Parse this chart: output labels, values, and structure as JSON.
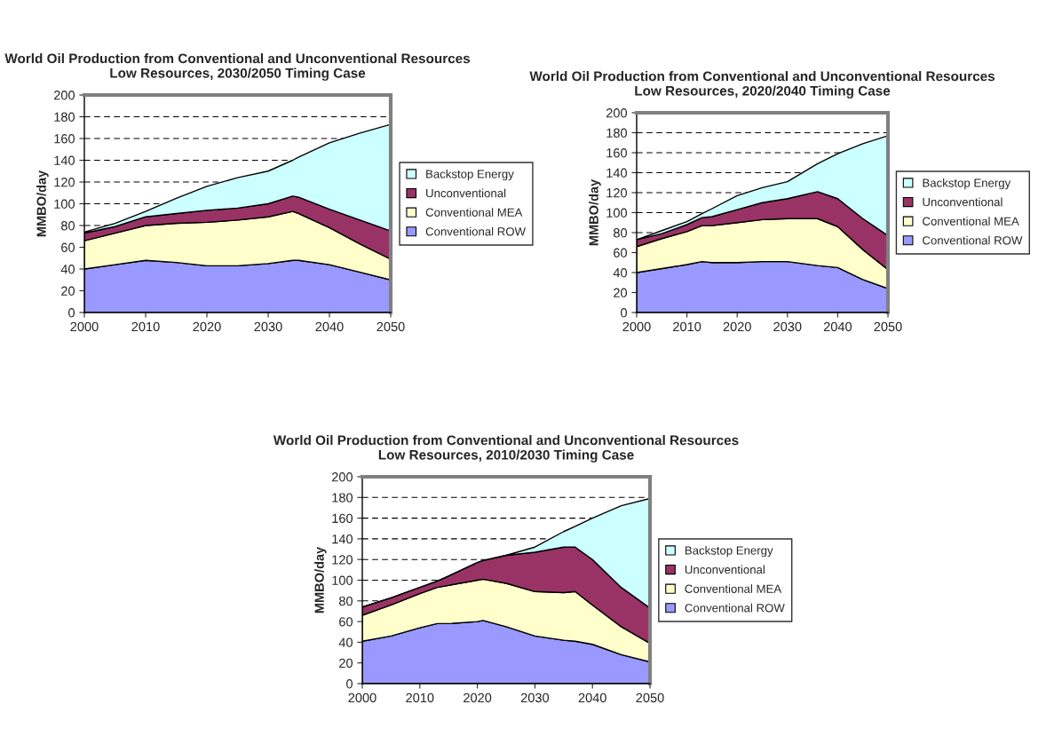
{
  "chart_data": [
    {
      "type": "area",
      "stacked": true,
      "title": "World Oil Production from Conventional and Unconventional Resources\nLow Resources, 2030/2050 Timing Case",
      "ylabel": "MMBO/day",
      "x": [
        2000,
        2005,
        2010,
        2015,
        2020,
        2025,
        2030,
        2034,
        2035,
        2040,
        2045,
        2050
      ],
      "xlim": [
        2000,
        2050
      ],
      "xticks": [
        2000,
        2010,
        2020,
        2030,
        2040,
        2050
      ],
      "ylim": [
        0,
        200
      ],
      "yticks": [
        0,
        20,
        40,
        60,
        80,
        100,
        120,
        140,
        160,
        180,
        200
      ],
      "grid": "y",
      "legend": "right",
      "series": [
        {
          "name": "Conventional ROW",
          "color": "#9999ff",
          "values": [
            40,
            44,
            48,
            46,
            43,
            43,
            45,
            48,
            48,
            44,
            37,
            30
          ]
        },
        {
          "name": "Conventional MEA",
          "color": "#ffffcc",
          "values": [
            26,
            29,
            32,
            36,
            40,
            42,
            43,
            45,
            43,
            34,
            26,
            19
          ]
        },
        {
          "name": "Unconventional",
          "color": "#993366",
          "values": [
            7,
            6,
            8,
            9,
            11,
            11,
            12,
            14,
            15,
            17,
            22,
            26
          ]
        },
        {
          "name": "Backstop Energy",
          "color": "#ccffff",
          "values": [
            1,
            3,
            5,
            14,
            22,
            28,
            30,
            33,
            37,
            61,
            80,
            98
          ]
        }
      ]
    },
    {
      "type": "area",
      "stacked": true,
      "title": "World Oil Production from Conventional and Unconventional Resources\nLow Resources, 2020/2040 Timing Case",
      "ylabel": "MMBO/day",
      "x": [
        2000,
        2005,
        2010,
        2013,
        2015,
        2020,
        2025,
        2030,
        2036,
        2040,
        2045,
        2050
      ],
      "xlim": [
        2000,
        2050
      ],
      "xticks": [
        2000,
        2010,
        2020,
        2030,
        2040,
        2050
      ],
      "ylim": [
        0,
        200
      ],
      "yticks": [
        0,
        20,
        40,
        60,
        80,
        100,
        120,
        140,
        160,
        180,
        200
      ],
      "grid": "y",
      "legend": "right",
      "series": [
        {
          "name": "Conventional ROW",
          "color": "#9999ff",
          "values": [
            40,
            44,
            48,
            51,
            50,
            50,
            51,
            51,
            47,
            45,
            33,
            24
          ]
        },
        {
          "name": "Conventional MEA",
          "color": "#ffffcc",
          "values": [
            26,
            30,
            33,
            36,
            37,
            40,
            42,
            43,
            47,
            41,
            30,
            19
          ]
        },
        {
          "name": "Unconventional",
          "color": "#993366",
          "values": [
            7,
            5,
            7,
            8,
            9,
            13,
            17,
            20,
            27,
            28,
            31,
            34
          ]
        },
        {
          "name": "Backstop Energy",
          "color": "#ccffff",
          "values": [
            0,
            3,
            3,
            4,
            8,
            14,
            15,
            17,
            28,
            45,
            75,
            100
          ]
        }
      ]
    },
    {
      "type": "area",
      "stacked": true,
      "title": "World Oil Production from Conventional and Unconventional Resources\nLow Resources, 2010/2030 Timing Case",
      "ylabel": "MMBO/day",
      "x": [
        2000,
        2005,
        2010,
        2013,
        2015,
        2020,
        2021,
        2025,
        2030,
        2035,
        2037,
        2040,
        2045,
        2050
      ],
      "xlim": [
        2000,
        2050
      ],
      "xticks": [
        2000,
        2010,
        2020,
        2030,
        2040,
        2050
      ],
      "ylim": [
        0,
        200
      ],
      "yticks": [
        0,
        20,
        40,
        60,
        80,
        100,
        120,
        140,
        160,
        180,
        200
      ],
      "grid": "y",
      "legend": "right",
      "series": [
        {
          "name": "Conventional ROW",
          "color": "#9999ff",
          "values": [
            41,
            46,
            54,
            58,
            58,
            60,
            61,
            55,
            46,
            42,
            41,
            38,
            28,
            21
          ]
        },
        {
          "name": "Conventional MEA",
          "color": "#ffffcc",
          "values": [
            25,
            30,
            33,
            35,
            37,
            40,
            40,
            42,
            43,
            46,
            48,
            38,
            27,
            18
          ]
        },
        {
          "name": "Unconventional",
          "color": "#993366",
          "values": [
            8,
            7,
            6,
            6,
            9,
            17,
            18,
            27,
            38,
            44,
            43,
            44,
            38,
            34
          ]
        },
        {
          "name": "Backstop Energy",
          "color": "#ccffff",
          "values": [
            0,
            0,
            0,
            0,
            0,
            0,
            0,
            0,
            5,
            15,
            20,
            40,
            79,
            106
          ]
        }
      ]
    }
  ]
}
